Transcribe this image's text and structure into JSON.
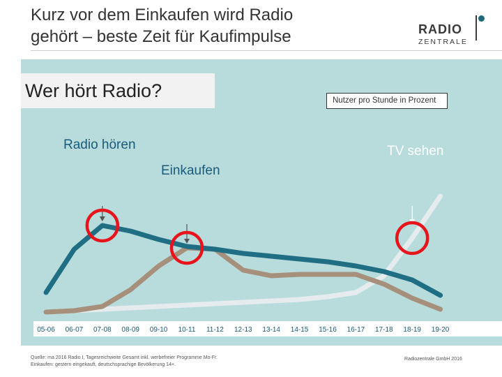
{
  "header": {
    "title_line1": "Kurz vor dem Einkaufen wird Radio",
    "title_line2": "gehört – beste Zeit für Kaufimpulse"
  },
  "logo": {
    "main": "RADIO",
    "sub": "ZENTRALE"
  },
  "panel": {
    "question": "Wer hört Radio?",
    "unit_label": "Nutzer pro Stunde in Prozent",
    "annotations": {
      "radio": "Radio hören",
      "tv": "TV sehen",
      "shopping": "Einkaufen"
    }
  },
  "chart_data": {
    "type": "line",
    "title": "Wer hört Radio?",
    "ylabel": "Nutzer pro Stunde in Prozent",
    "xlabel": "",
    "categories": [
      "05-06",
      "06-07",
      "07-08",
      "08-09",
      "09-10",
      "10-11",
      "11-12",
      "12-13",
      "13-14",
      "14-15",
      "15-16",
      "16-17",
      "17-18",
      "18-19",
      "19-20"
    ],
    "ylim": [
      0,
      100
    ],
    "grid": false,
    "series": [
      {
        "name": "Radio hören",
        "color": "#1f6e84",
        "values": [
          18,
          49,
          66,
          62,
          56,
          51,
          49,
          46,
          44,
          42,
          40,
          37,
          33,
          27,
          16
        ]
      },
      {
        "name": "Einkaufen",
        "color": "#a6907c",
        "values": [
          4,
          5,
          8,
          20,
          37,
          50,
          49,
          34,
          30,
          31,
          31,
          31,
          24,
          14,
          6
        ]
      },
      {
        "name": "TV sehen",
        "color": "#e6ecee",
        "values": [
          4,
          5,
          6,
          7,
          8,
          9,
          10,
          11,
          12,
          13,
          15,
          18,
          30,
          57,
          87
        ]
      }
    ],
    "highlights": [
      {
        "series": "Radio hören",
        "category": "07-08"
      },
      {
        "series": "Einkaufen",
        "category": "10-11"
      },
      {
        "series": "TV sehen",
        "category": "18-19"
      }
    ],
    "arrows": [
      {
        "label": "Radio hören",
        "category": "07-08",
        "from_value": 80,
        "to_value": 69
      },
      {
        "label": "Einkaufen",
        "category": "10-11",
        "from_value": 67,
        "to_value": 53
      },
      {
        "label": "TV sehen",
        "category": "18-19",
        "from_value": 80,
        "to_value": 67
      }
    ]
  },
  "footer": {
    "source_line1": "Quelle: ma 2016 Radio I, Tagesreichweite Gesamt inkl. werbefreier Programme Mo-Fr.",
    "source_line2": "Einkaufen: gestern eingekauft, deutschsprachige Bevölkerung 14+.",
    "copyright": "Radiozentrale GmbH 2016"
  }
}
